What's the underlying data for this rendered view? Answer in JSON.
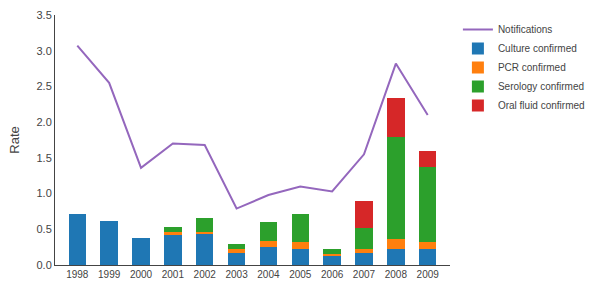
{
  "chart_data": {
    "type": "bar",
    "stacked": true,
    "x": [
      1998,
      1999,
      2000,
      2001,
      2002,
      2003,
      2004,
      2005,
      2006,
      2007,
      2008,
      2009
    ],
    "xlim": [
      1997.3,
      2009.7
    ],
    "xticks": [
      1998,
      1999,
      2000,
      2001,
      2002,
      2003,
      2004,
      2005,
      2006,
      2007,
      2008,
      2009
    ],
    "ylabel": "Rate",
    "ylim": [
      0,
      3.5
    ],
    "yticks": [
      {
        "value": 0,
        "label": "0.0"
      },
      0.5,
      {
        "value": 1.0,
        "label": "1.0"
      },
      1.5,
      {
        "value": 2.0,
        "label": "2.0"
      },
      2.5,
      {
        "value": 3.0,
        "label": "3.0"
      },
      3.5
    ],
    "grid": false,
    "legend": "upper right",
    "series": [
      {
        "name": "Culture confirmed",
        "type": "bar",
        "values": [
          0.72,
          0.62,
          0.38,
          0.42,
          0.44,
          0.17,
          0.25,
          0.22,
          0.13,
          0.17,
          0.22,
          0.22
        ]
      },
      {
        "name": "PCR confirmed",
        "type": "bar",
        "values": [
          0.0,
          0.0,
          0.0,
          0.04,
          0.02,
          0.05,
          0.08,
          0.1,
          0.02,
          0.05,
          0.15,
          0.1
        ]
      },
      {
        "name": "Serology confirmed",
        "type": "bar",
        "values": [
          0.0,
          0.0,
          0.0,
          0.07,
          0.2,
          0.08,
          0.27,
          0.4,
          0.07,
          0.3,
          1.42,
          1.05
        ]
      },
      {
        "name": "Oral fluid confirmed",
        "type": "bar",
        "values": [
          0.0,
          0.0,
          0.0,
          0.0,
          0.0,
          0.0,
          0.0,
          0.0,
          0.0,
          0.38,
          0.55,
          0.23
        ]
      },
      {
        "name": "Notifications",
        "type": "line",
        "values": [
          3.07,
          2.55,
          1.36,
          1.7,
          1.68,
          0.79,
          0.98,
          1.1,
          1.03,
          1.55,
          2.82,
          2.1
        ]
      }
    ]
  }
}
